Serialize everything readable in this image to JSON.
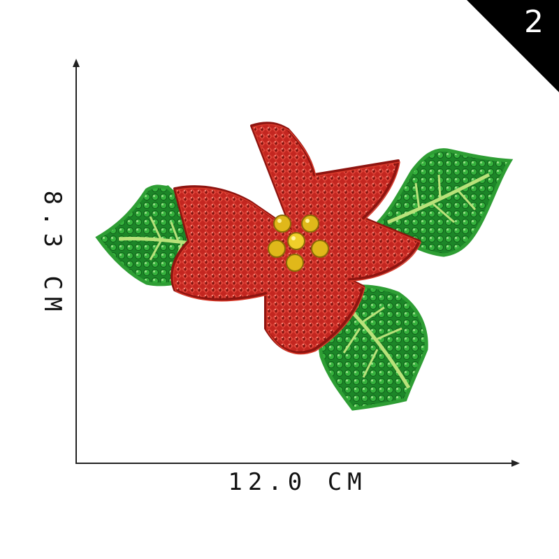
{
  "badge": {
    "number": "2"
  },
  "dimensions": {
    "height_label": "8.3 CM",
    "width_label": "12.0 CM"
  },
  "colors": {
    "petal_red": "#c8281f",
    "petal_dark_red": "#8e1410",
    "leaf_green": "#1f8a2a",
    "leaf_dark_green": "#0f5a18",
    "vein_green": "#b9e27a",
    "center_gold": "#e0b81a"
  }
}
